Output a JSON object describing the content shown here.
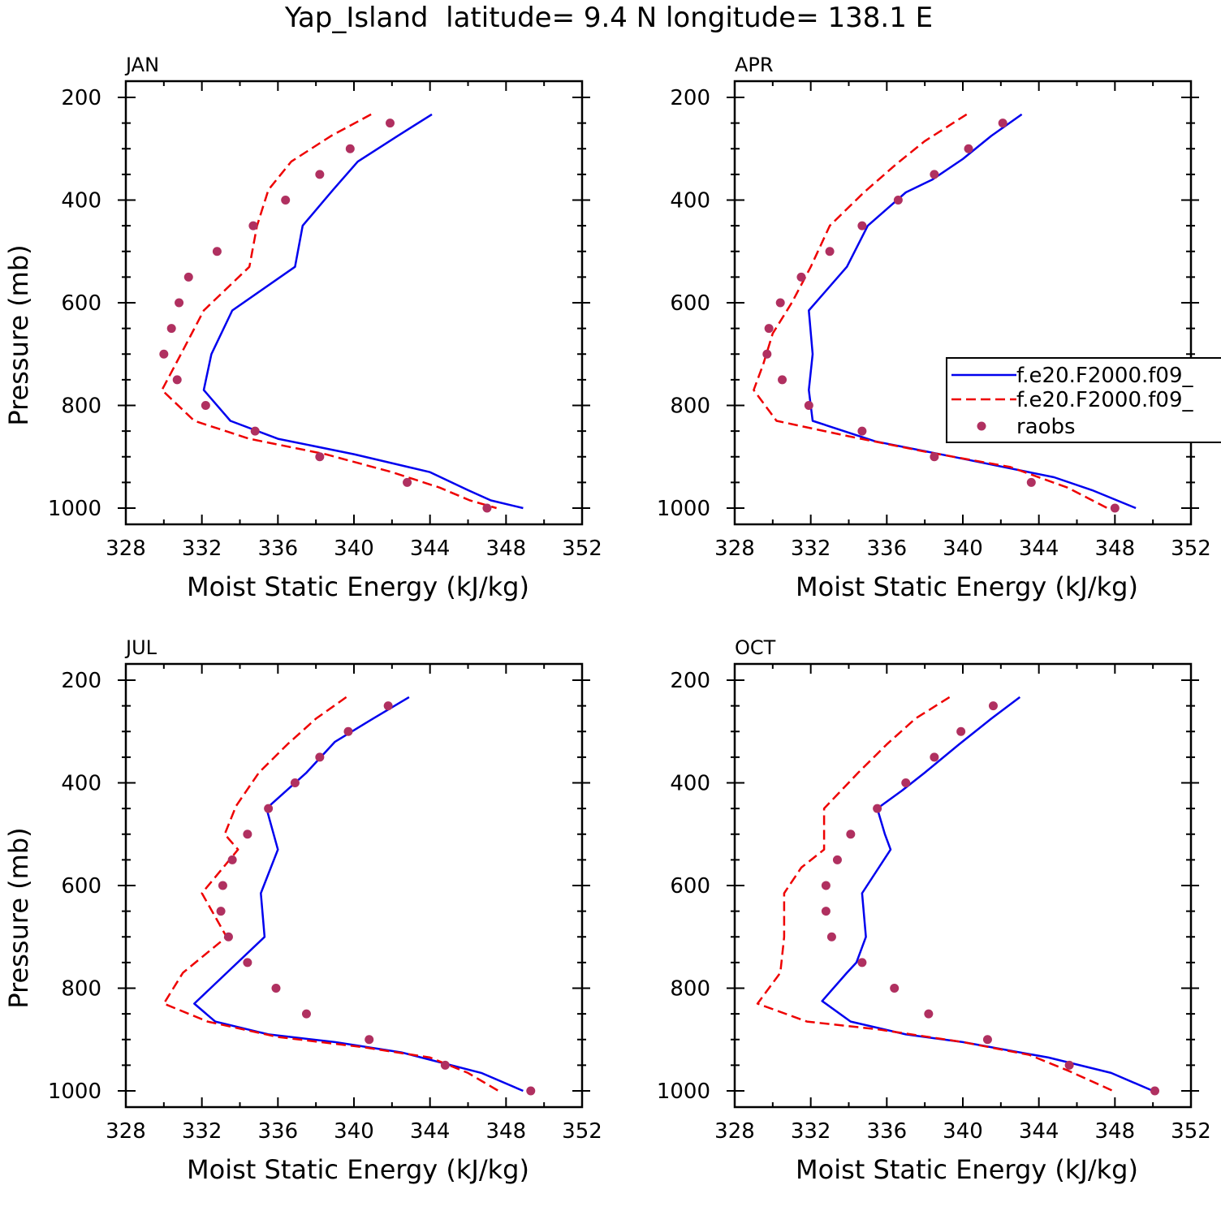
{
  "title": "Yap_Island  latitude= 9.4 N longitude= 138.1 E",
  "colors": {
    "model1": "#0000ee",
    "model2": "#ee0000",
    "raobs": "#b03060"
  },
  "chart_data": [
    {
      "type": "line",
      "panel": "JAN",
      "xlabel": "Moist Static Energy (kJ/kg)",
      "ylabel": "Pressure (mb)",
      "xlim": [
        328,
        352
      ],
      "ylim": [
        200,
        1000
      ],
      "y_inverted": true,
      "xticks": [
        "328",
        "332",
        "336",
        "340",
        "344",
        "348",
        "352"
      ],
      "yticks": [
        "200",
        "400",
        "600",
        "800",
        "1000"
      ],
      "series": [
        {
          "style": "solid",
          "color": "#0000ee",
          "x": [
            344.1,
            342.3,
            340.2,
            338.9,
            337.3,
            336.9,
            333.6,
            332.5,
            332.1,
            333.5,
            336.0,
            340.0,
            344.0,
            346.0,
            347.2,
            348.9
          ],
          "y": [
            233,
            275,
            325,
            380,
            450,
            530,
            615,
            700,
            770,
            830,
            865,
            895,
            930,
            965,
            985,
            1000
          ]
        },
        {
          "style": "dashed",
          "color": "#ee0000",
          "x": [
            340.9,
            338.8,
            336.7,
            335.5,
            334.9,
            334.5,
            332.1,
            330.9,
            329.9,
            331.6,
            334.5,
            338.5,
            342.0,
            344.5,
            346.1,
            347.5
          ],
          "y": [
            233,
            275,
            325,
            380,
            450,
            530,
            615,
            700,
            770,
            830,
            865,
            895,
            930,
            960,
            985,
            1000
          ]
        }
      ],
      "points": {
        "name": "raobs",
        "x": [
          341.9,
          339.8,
          338.2,
          336.4,
          334.7,
          332.8,
          331.3,
          330.8,
          330.4,
          330.0,
          330.7,
          332.2,
          334.8,
          338.2,
          342.8,
          347.0
        ],
        "y": [
          250,
          300,
          350,
          400,
          450,
          500,
          550,
          600,
          650,
          700,
          750,
          800,
          850,
          900,
          950,
          1000
        ]
      }
    },
    {
      "type": "line",
      "panel": "APR",
      "xlabel": "Moist Static Energy (kJ/kg)",
      "ylabel": "",
      "xlim": [
        328,
        352
      ],
      "ylim": [
        200,
        1000
      ],
      "y_inverted": true,
      "xticks": [
        "328",
        "332",
        "336",
        "340",
        "344",
        "348",
        "352"
      ],
      "yticks": [
        "200",
        "400",
        "600",
        "800",
        "1000"
      ],
      "legend": {
        "location": "right",
        "entries": [
          "f.e20.F2000.f09_",
          "f.e20.F2000.f09_",
          "raobs"
        ]
      },
      "series": [
        {
          "style": "solid",
          "color": "#0000ee",
          "x": [
            343.1,
            341.5,
            340.0,
            338.4,
            337.0,
            335.0,
            333.9,
            331.9,
            332.1,
            331.9,
            332.1,
            335.4,
            339.5,
            344.8,
            346.8,
            349.1
          ],
          "y": [
            233,
            275,
            320,
            360,
            385,
            450,
            530,
            615,
            700,
            770,
            830,
            870,
            900,
            940,
            965,
            1000
          ]
        },
        {
          "style": "dashed",
          "color": "#ee0000",
          "x": [
            340.2,
            338.0,
            336.5,
            334.8,
            333.0,
            332.0,
            331.0,
            330.0,
            329.5,
            329.0,
            330.2,
            334.0,
            338.0,
            342.5,
            345.5,
            347.6
          ],
          "y": [
            233,
            285,
            330,
            385,
            450,
            530,
            600,
            660,
            720,
            770,
            830,
            860,
            890,
            920,
            960,
            1000
          ]
        }
      ],
      "points": {
        "name": "raobs",
        "x": [
          342.1,
          340.3,
          338.5,
          336.6,
          334.7,
          333.0,
          331.5,
          330.4,
          329.8,
          329.7,
          330.5,
          331.9,
          334.7,
          338.5,
          343.6,
          348.0
        ],
        "y": [
          250,
          300,
          350,
          400,
          450,
          500,
          550,
          600,
          650,
          700,
          750,
          800,
          850,
          900,
          950,
          1000
        ]
      }
    },
    {
      "type": "line",
      "panel": "JUL",
      "xlabel": "Moist Static Energy (kJ/kg)",
      "ylabel": "Pressure (mb)",
      "xlim": [
        328,
        352
      ],
      "ylim": [
        200,
        1000
      ],
      "y_inverted": true,
      "xticks": [
        "328",
        "332",
        "336",
        "340",
        "344",
        "348",
        "352"
      ],
      "yticks": [
        "200",
        "400",
        "600",
        "800",
        "1000"
      ],
      "series": [
        {
          "style": "solid",
          "color": "#0000ee",
          "x": [
            342.9,
            341.0,
            339.0,
            337.5,
            335.4,
            336.0,
            335.1,
            335.3,
            331.6,
            332.7,
            335.5,
            339.0,
            342.5,
            346.7,
            348.9
          ],
          "y": [
            233,
            275,
            320,
            380,
            450,
            530,
            615,
            700,
            830,
            865,
            890,
            905,
            925,
            965,
            1000
          ]
        },
        {
          "style": "dashed",
          "color": "#ee0000",
          "x": [
            339.6,
            338.0,
            336.5,
            335.0,
            333.8,
            333.2,
            333.9,
            332.0,
            333.3,
            331.0,
            330.0,
            332.3,
            336.0,
            340.5,
            344.0,
            346.0,
            347.6
          ],
          "y": [
            233,
            275,
            325,
            380,
            445,
            500,
            530,
            615,
            700,
            770,
            830,
            865,
            895,
            915,
            935,
            965,
            1000
          ]
        }
      ],
      "points": {
        "name": "raobs",
        "x": [
          341.8,
          339.7,
          338.2,
          336.9,
          335.5,
          334.4,
          333.6,
          333.1,
          333.0,
          333.4,
          334.4,
          335.9,
          337.5,
          340.8,
          344.8,
          349.3
        ],
        "y": [
          250,
          300,
          350,
          400,
          450,
          500,
          550,
          600,
          650,
          700,
          750,
          800,
          850,
          900,
          950,
          1000
        ]
      }
    },
    {
      "type": "line",
      "panel": "OCT",
      "xlabel": "Moist Static Energy (kJ/kg)",
      "ylabel": "",
      "xlim": [
        328,
        352
      ],
      "ylim": [
        200,
        1000
      ],
      "y_inverted": true,
      "xticks": [
        "328",
        "332",
        "336",
        "340",
        "344",
        "348",
        "352"
      ],
      "yticks": [
        "200",
        "400",
        "600",
        "800",
        "1000"
      ],
      "series": [
        {
          "style": "solid",
          "color": "#0000ee",
          "x": [
            343.0,
            341.5,
            339.8,
            338.0,
            336.8,
            335.5,
            335.9,
            336.2,
            334.7,
            334.9,
            334.4,
            333.9,
            332.6,
            334.1,
            337.0,
            340.0,
            344.5,
            347.8,
            350.0
          ],
          "y": [
            233,
            275,
            325,
            380,
            415,
            450,
            500,
            530,
            615,
            700,
            750,
            770,
            825,
            865,
            890,
            905,
            935,
            965,
            1000
          ]
        },
        {
          "style": "dashed",
          "color": "#ee0000",
          "x": [
            339.3,
            337.5,
            336.0,
            334.5,
            332.7,
            332.7,
            331.5,
            330.6,
            330.6,
            330.4,
            329.2,
            331.8,
            335.5,
            340.0,
            343.5,
            345.5,
            347.9
          ],
          "y": [
            233,
            275,
            325,
            380,
            450,
            530,
            565,
            615,
            700,
            770,
            830,
            865,
            880,
            905,
            930,
            960,
            1000
          ]
        }
      ],
      "points": {
        "name": "raobs",
        "x": [
          341.6,
          339.9,
          338.5,
          337.0,
          335.5,
          334.1,
          333.4,
          332.8,
          332.8,
          333.1,
          334.7,
          336.4,
          338.2,
          341.3,
          345.6,
          350.1
        ],
        "y": [
          250,
          300,
          350,
          400,
          450,
          500,
          550,
          600,
          650,
          700,
          750,
          800,
          850,
          900,
          950,
          1000
        ]
      }
    }
  ]
}
